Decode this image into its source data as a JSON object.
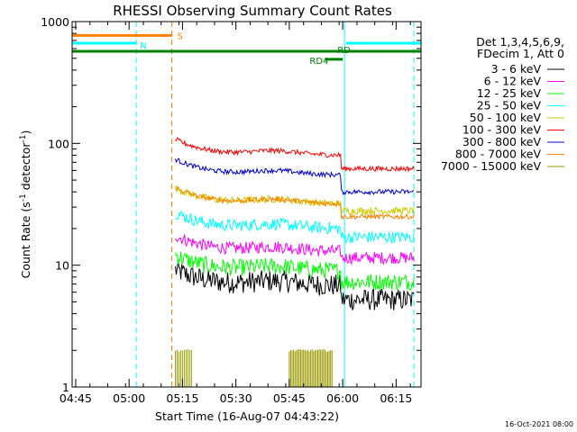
{
  "chart_data": {
    "type": "line",
    "title": "RHESSI Observing Summary Count Rates",
    "xlabel": "Start Time (16-Aug-07 04:43:22)",
    "ylabel_main": "Count Rate (s",
    "ylabel_sup1": "-1",
    "ylabel_mid": " detector",
    "ylabel_sup2": "-1",
    "ylabel_end": ")",
    "ylog": true,
    "ylim": [
      1,
      1000
    ],
    "xlim_min": [
      284,
      382
    ],
    "yticks": [
      {
        "v": 1,
        "label": "1"
      },
      {
        "v": 10,
        "label": "10"
      },
      {
        "v": 100,
        "label": "100"
      },
      {
        "v": 1000,
        "label": "1000"
      }
    ],
    "xticks": [
      {
        "v": 285,
        "label": "04:45"
      },
      {
        "v": 300,
        "label": "05:00"
      },
      {
        "v": 315,
        "label": "05:15"
      },
      {
        "v": 330,
        "label": "05:30"
      },
      {
        "v": 345,
        "label": "05:45"
      },
      {
        "v": 360,
        "label": "06:00"
      },
      {
        "v": 375,
        "label": "06:15"
      }
    ],
    "legend_header": [
      "Det 1,3,4,5,6,9,",
      "FDecim 1, Att 0"
    ],
    "series": [
      {
        "name": "3 - 6 keV",
        "color": "#000000",
        "level": 6.8,
        "end_level": 5.2,
        "noise": 0.09
      },
      {
        "name": "6 - 12 keV",
        "color": "#ff00ff",
        "level": 13.0,
        "end_level": 11.5,
        "noise": 0.05
      },
      {
        "name": "12 - 25 keV",
        "color": "#00ff00",
        "level": 9.0,
        "end_level": 7.3,
        "noise": 0.07
      },
      {
        "name": "25 - 50 keV",
        "color": "#00ffff",
        "level": 20.0,
        "end_level": 17.0,
        "noise": 0.05
      },
      {
        "name": "50 - 100 keV",
        "color": "#cccc00",
        "level": 32.0,
        "end_level": 28.0,
        "noise": 0.03
      },
      {
        "name": "100 - 300 keV",
        "color": "#ff0000",
        "level": 80.0,
        "end_level": 62.0,
        "noise": 0.02
      },
      {
        "name": "300 - 800 keV",
        "color": "#0000cc",
        "level": 55.0,
        "end_level": 40.0,
        "noise": 0.02
      },
      {
        "name": "800 - 7000 keV",
        "color": "#ff8000",
        "level": 32.0,
        "end_level": 25.0,
        "noise": 0.02
      },
      {
        "name": "7000 - 15000 keV",
        "color": "#999900",
        "level": 1.2,
        "end_level": 1.2,
        "noise": 0.0
      }
    ],
    "flags": [
      {
        "label": "S",
        "color": "#ff8000",
        "y": 770,
        "x_start": 284,
        "x_end": 312
      },
      {
        "label": "N",
        "color": "#00ffff",
        "y": 665,
        "x_start": 284,
        "x_end": 302
      },
      {
        "label": "N",
        "color": "#00ffff",
        "y": 665,
        "x_start": 361,
        "x_end": 382
      },
      {
        "label": "RD",
        "color": "#008000",
        "y": 570,
        "x_start": 284,
        "x_end": 382
      },
      {
        "label": "RD4",
        "color": "#008000",
        "y": 490,
        "x_start": 355,
        "x_end": 360
      }
    ],
    "vlines": [
      {
        "x": 302,
        "color": "#00ffff",
        "dashed": true
      },
      {
        "x": 312,
        "color": "#ff8000",
        "dashed": true
      },
      {
        "x": 360.5,
        "color": "#00ffff",
        "dashed": false
      },
      {
        "x": 380,
        "color": "#00ffff",
        "dashed": true
      }
    ],
    "start_x": 313,
    "step_x": 359.5,
    "end_x": 380
  },
  "timestamp": "16-Oct-2021 08:00"
}
